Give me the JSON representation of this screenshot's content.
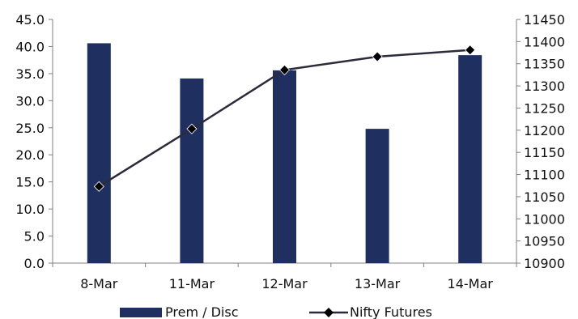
{
  "chart_data": {
    "type": "bar+line",
    "categories": [
      "8-Mar",
      "11-Mar",
      "12-Mar",
      "13-Mar",
      "14-Mar"
    ],
    "series": [
      {
        "name": "Prem / Disc",
        "type": "bar",
        "axis": "left",
        "color": "#1f3060",
        "values": [
          40.6,
          34.1,
          35.6,
          24.8,
          38.4
        ]
      },
      {
        "name": "Nifty Futures",
        "type": "line",
        "axis": "right",
        "color": "#2b2b3a",
        "marker": "diamond",
        "values": [
          11073,
          11203,
          11336,
          11366,
          11381
        ]
      }
    ],
    "y_left": {
      "min": 0,
      "max": 45,
      "step": 5,
      "decimals": 1
    },
    "y_right": {
      "min": 10900,
      "max": 11450,
      "step": 50,
      "decimals": 0
    },
    "legend": {
      "position": "bottom"
    },
    "grid": false
  }
}
